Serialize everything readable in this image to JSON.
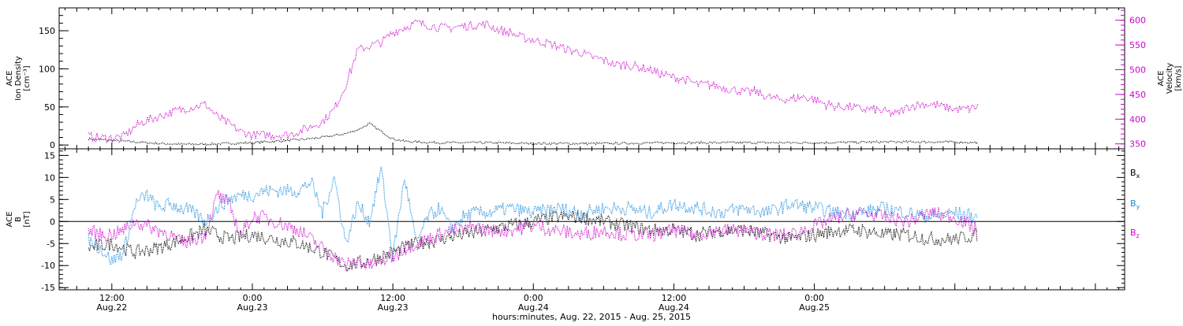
{
  "chart_data": [
    {
      "type": "scatter",
      "panel": "top",
      "ylabel": "ACE\nIon Density\n[cm⁻³]",
      "y2label": "ACE\nVelocity\n[km/s]",
      "ylim": [
        -5,
        180
      ],
      "y2lim": [
        340,
        625
      ],
      "yticks": [
        0,
        50,
        100,
        150
      ],
      "y2ticks": [
        350,
        400,
        450,
        500,
        550,
        600
      ],
      "colors": {
        "density": "#000000",
        "velocity": "#cc00cc"
      },
      "series": [
        {
          "key": "density",
          "axis": "left",
          "x": [
            -14,
            -12,
            -10,
            -8,
            -6,
            -4,
            -2,
            0,
            2,
            4,
            6,
            8,
            9,
            10,
            11,
            12,
            13,
            14,
            16,
            20,
            24,
            30,
            36,
            42,
            48,
            54,
            60,
            62
          ],
          "y": [
            8,
            6,
            4,
            2,
            1,
            1,
            2,
            3,
            5,
            7,
            10,
            15,
            20,
            28,
            18,
            8,
            5,
            4,
            3,
            3,
            2,
            2,
            3,
            3,
            3,
            4,
            4,
            3
          ]
        },
        {
          "key": "velocity",
          "axis": "right",
          "x": [
            -14,
            -13,
            -12,
            -11,
            -10,
            -9,
            -8,
            -7,
            -6,
            -5,
            -4,
            -3,
            -2,
            -1,
            0,
            1,
            2,
            3,
            4,
            5,
            6,
            7,
            8,
            9,
            10,
            11,
            12,
            13,
            14,
            15,
            16,
            17,
            18,
            19,
            20,
            21,
            22,
            23,
            24,
            25,
            26,
            27,
            28,
            29,
            30,
            31,
            32,
            33,
            34,
            35,
            36,
            37,
            38,
            39,
            40,
            41,
            42,
            43,
            44,
            45,
            46,
            47,
            48,
            49,
            50,
            51,
            52,
            53,
            54,
            55,
            56,
            57,
            58,
            59,
            60,
            61,
            62
          ],
          "y": [
            365,
            362,
            362,
            365,
            385,
            398,
            405,
            413,
            420,
            425,
            430,
            405,
            390,
            375,
            368,
            368,
            368,
            368,
            375,
            385,
            395,
            420,
            470,
            540,
            548,
            555,
            575,
            585,
            595,
            590,
            585,
            585,
            588,
            590,
            592,
            580,
            575,
            565,
            560,
            555,
            548,
            540,
            535,
            525,
            520,
            510,
            510,
            505,
            500,
            490,
            485,
            480,
            470,
            470,
            465,
            460,
            455,
            455,
            445,
            440,
            440,
            445,
            440,
            430,
            425,
            425,
            420,
            420,
            415,
            410,
            425,
            430,
            430,
            425,
            420,
            420,
            425
          ]
        }
      ]
    },
    {
      "type": "scatter",
      "panel": "bottom",
      "ylabel": "ACE\nB\n[nT]",
      "ylim": [
        -15.5,
        16.5
      ],
      "yticks": [
        -15,
        -10,
        -5,
        0,
        5,
        10,
        15
      ],
      "zero_line": true,
      "colors": {
        "bx": "#000000",
        "by": "#1a8cdd",
        "bz": "#cc00cc"
      },
      "series": [
        {
          "key": "bx",
          "label": "B",
          "subscript": "x",
          "x": [
            -14,
            -12,
            -10,
            -8,
            -6,
            -4,
            -2,
            0,
            2,
            4,
            6,
            8,
            10,
            11,
            12,
            13,
            14,
            16,
            18,
            20,
            22,
            24,
            26,
            28,
            30,
            32,
            34,
            36,
            38,
            40,
            42,
            44,
            46,
            48,
            50,
            52,
            54,
            56,
            58,
            60,
            62
          ],
          "y": [
            -6,
            -5,
            -7,
            -6,
            -4,
            -2,
            -4,
            -3,
            -4,
            -5,
            -7,
            -10,
            -9,
            -8,
            -7,
            -6,
            -5,
            -4,
            -3,
            -2,
            -1,
            0,
            1,
            1,
            0,
            -1,
            -2,
            -2,
            -3,
            -2,
            -2,
            -3,
            -4,
            -3,
            -2,
            -2,
            -3,
            -3,
            -4,
            -4,
            -3
          ]
        },
        {
          "key": "by",
          "label": "B",
          "subscript": "y",
          "x": [
            -14,
            -13,
            -12,
            -11,
            -10,
            -9,
            -8,
            -7,
            -6,
            -5,
            -4,
            -3,
            -2,
            -1,
            0,
            1,
            2,
            3,
            4,
            5,
            6,
            7,
            8,
            9,
            10,
            11,
            12,
            13,
            14,
            15,
            16,
            17,
            18,
            19,
            20,
            22,
            24,
            26,
            28,
            30,
            32,
            34,
            36,
            38,
            40,
            42,
            44,
            46,
            48,
            50,
            52,
            54,
            56,
            58,
            60,
            62
          ],
          "y": [
            -4,
            -6,
            -9,
            -7,
            4,
            6,
            3,
            4,
            3,
            2,
            0,
            3,
            5,
            6,
            6,
            7,
            7,
            7,
            7,
            9,
            2,
            10,
            -5,
            4,
            0,
            12,
            -8,
            10,
            -5,
            1,
            3,
            -2,
            1,
            2,
            2,
            3,
            2,
            3,
            2,
            3,
            3,
            2,
            4,
            3,
            2,
            3,
            2,
            4,
            3,
            2,
            2,
            3,
            2,
            1,
            2,
            1
          ]
        },
        {
          "key": "bz",
          "label": "B",
          "subscript": "z",
          "x": [
            -14,
            -13,
            -12,
            -11,
            -10,
            -9,
            -8,
            -7,
            -6,
            -5,
            -4,
            -3,
            -2,
            -1,
            0,
            1,
            2,
            3,
            4,
            5,
            6,
            7,
            8,
            9,
            10,
            11,
            12,
            13,
            14,
            15,
            16,
            17,
            18,
            19,
            20,
            22,
            24,
            26,
            28,
            30,
            32,
            34,
            36,
            38,
            40,
            42,
            44,
            46,
            48,
            50,
            52,
            54,
            56,
            58,
            60,
            62
          ],
          "y": [
            -2,
            -3,
            -3,
            -2,
            0,
            -1,
            -2,
            -3,
            -5,
            -4,
            -3,
            6,
            4,
            -3,
            1,
            1,
            0,
            -1,
            -2,
            -4,
            -6,
            -8,
            -10,
            -9,
            -10,
            -9,
            -8,
            -6,
            -5,
            -4,
            -3,
            -2,
            -2,
            -1,
            -2,
            -2,
            -1,
            -2,
            -3,
            -2,
            -3,
            -3,
            -2,
            -3,
            -2,
            -2,
            -3,
            -3,
            -1,
            1,
            2,
            1,
            0,
            2,
            1,
            -2
          ]
        }
      ]
    }
  ],
  "x_axis": {
    "unit_hours": true,
    "range": [
      -16.5,
      74.5
    ],
    "major_ticks": [
      {
        "h": -12,
        "time": "12:00",
        "date": "Aug.22"
      },
      {
        "h": 0,
        "time": "0:00",
        "date": "Aug.23"
      },
      {
        "h": 12,
        "time": "12:00",
        "date": "Aug.23"
      },
      {
        "h": 24,
        "time": "0:00",
        "date": "Aug.24"
      },
      {
        "h": 36,
        "time": "12:00",
        "date": "Aug.24"
      },
      {
        "h": 48,
        "time": "0:00",
        "date": "Aug.25"
      }
    ],
    "label": "hours:minutes, Aug. 22, 2015 - Aug. 25, 2015"
  }
}
